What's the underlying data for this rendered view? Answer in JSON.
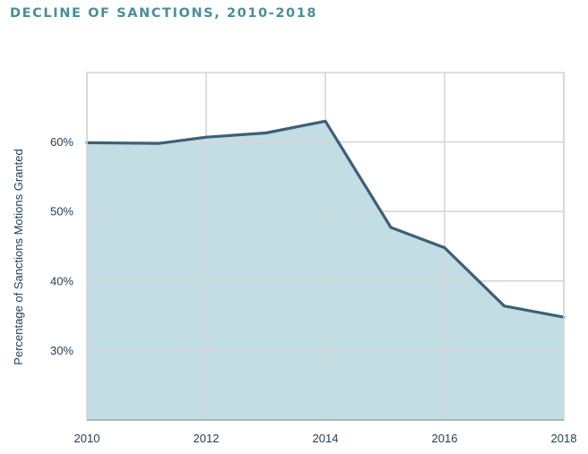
{
  "chart_data": {
    "type": "area",
    "title": "DECLINE OF SANCTIONS, 2010-2018",
    "xlabel": "",
    "ylabel": "Percentage of Sanctions Motions Granted",
    "x": [
      2010,
      2011.2,
      2012,
      2013,
      2014,
      2015.1,
      2016,
      2017,
      2018
    ],
    "series": [
      {
        "values": [
          59.9,
          59.8,
          60.7,
          61.3,
          63.0,
          47.7,
          44.8,
          36.4,
          34.8
        ]
      }
    ],
    "xlim": [
      2010,
      2018
    ],
    "ylim": [
      20,
      70
    ],
    "xticks": [
      2010,
      2012,
      2014,
      2016,
      2018
    ],
    "xtick_labels": [
      "2010",
      "2012",
      "2014",
      "2016",
      "2018"
    ],
    "yticks": [
      30,
      40,
      50,
      60
    ],
    "ytick_labels": [
      "30%",
      "40%",
      "50%",
      "60%"
    ],
    "grid": true,
    "legend": "none",
    "colors": {
      "title": "#4a8e98",
      "fill": "#c2dde3",
      "line": "#3c5f7a",
      "grid": "#d6d6d6",
      "text": "#1f3c56"
    }
  }
}
